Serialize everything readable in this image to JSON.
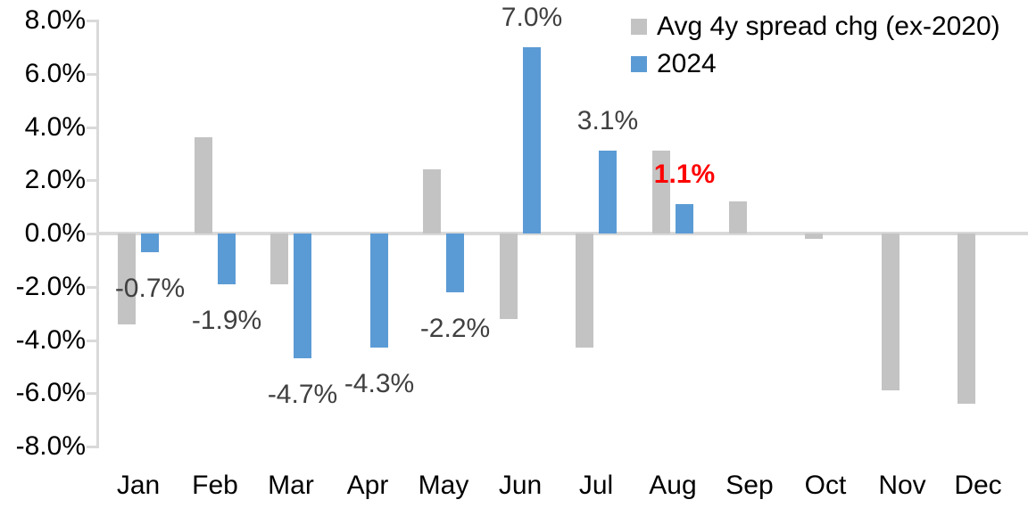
{
  "chart_data": {
    "type": "bar",
    "categories": [
      "Jan",
      "Feb",
      "Mar",
      "Apr",
      "May",
      "Jun",
      "Jul",
      "Aug",
      "Sep",
      "Oct",
      "Nov",
      "Dec"
    ],
    "series": [
      {
        "name": "Avg 4y spread chg (ex-2020)",
        "color": "#c3c3c3",
        "values": [
          -3.4,
          3.6,
          -1.9,
          0.0,
          2.4,
          -3.2,
          -4.3,
          3.1,
          1.2,
          -0.2,
          -5.9,
          -6.4
        ]
      },
      {
        "name": "2024",
        "color": "#5b9bd5",
        "values": [
          -0.7,
          -1.9,
          -4.7,
          -4.3,
          -2.2,
          7.0,
          3.1,
          1.1,
          null,
          null,
          null,
          null
        ],
        "data_labels": [
          {
            "text": "-0.7%"
          },
          {
            "text": "-1.9%"
          },
          {
            "text": "-4.7%"
          },
          {
            "text": "-4.3%"
          },
          {
            "text": "-2.2%"
          },
          {
            "text": "7.0%"
          },
          {
            "text": "3.1%"
          },
          {
            "text": "1.1%",
            "highlight": true
          },
          null,
          null,
          null,
          null
        ]
      }
    ],
    "ylim": [
      -8,
      8
    ],
    "yticks": [
      {
        "value": 8,
        "label": "8.0%"
      },
      {
        "value": 6,
        "label": "6.0%"
      },
      {
        "value": 4,
        "label": "4.0%"
      },
      {
        "value": 2,
        "label": "2.0%"
      },
      {
        "value": 0,
        "label": "0.0%"
      },
      {
        "value": -2,
        "label": "-2.0%"
      },
      {
        "value": -4,
        "label": "-4.0%"
      },
      {
        "value": -6,
        "label": "-6.0%"
      },
      {
        "value": -8,
        "label": "-8.0%"
      }
    ],
    "grid": false,
    "legend_position": "top-right",
    "axis_color": "#d9d9d9",
    "label_color_default": "#404040",
    "highlight_color": "#ff0000"
  }
}
